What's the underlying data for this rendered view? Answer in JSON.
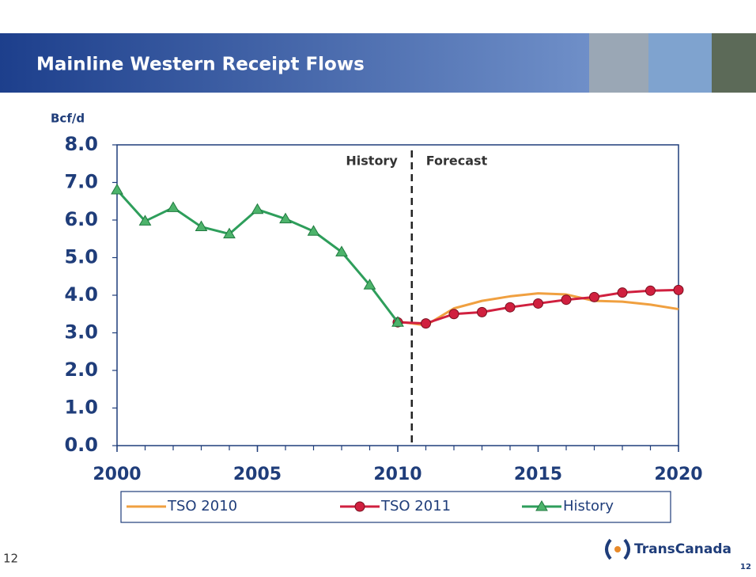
{
  "slide": {
    "title": "Mainline Western Receipt Flows",
    "page_number": "12",
    "logo": "TransCanada",
    "corner_number": "12"
  },
  "chart_data": {
    "type": "line",
    "y_label": "Bcf/d",
    "x": [
      2000,
      2001,
      2002,
      2003,
      2004,
      2005,
      2006,
      2007,
      2008,
      2009,
      2010,
      2011,
      2012,
      2013,
      2014,
      2015,
      2016,
      2017,
      2018,
      2019,
      2020
    ],
    "series": [
      {
        "name": "TSO 2010",
        "color": "#f0a040",
        "marker": "none",
        "values": [
          null,
          null,
          null,
          null,
          null,
          null,
          null,
          null,
          null,
          null,
          3.3,
          3.2,
          3.65,
          3.85,
          3.97,
          4.05,
          4.02,
          3.85,
          3.83,
          3.75,
          3.63
        ]
      },
      {
        "name": "TSO 2011",
        "color": "#d0203f",
        "marker": "circle",
        "values": [
          null,
          null,
          null,
          null,
          null,
          null,
          null,
          null,
          null,
          null,
          3.28,
          3.25,
          3.5,
          3.55,
          3.68,
          3.78,
          3.88,
          3.95,
          4.07,
          4.12,
          4.14
        ]
      },
      {
        "name": "History",
        "color": "#2e9e5b",
        "marker": "triangle",
        "values": [
          6.8,
          5.97,
          6.33,
          5.82,
          5.63,
          6.28,
          6.03,
          5.7,
          5.15,
          4.27,
          3.28,
          null,
          null,
          null,
          null,
          null,
          null,
          null,
          null,
          null,
          null
        ]
      }
    ],
    "xlim": [
      2000,
      2020
    ],
    "xticks": [
      2000,
      2005,
      2010,
      2015,
      2020
    ],
    "ylim": [
      0,
      8
    ],
    "yticks": [
      {
        "value": 0,
        "label": "0.0"
      },
      {
        "value": 1,
        "label": "1.0"
      },
      {
        "value": 2,
        "label": "2.0"
      },
      {
        "value": 3,
        "label": "3.0"
      },
      {
        "value": 4,
        "label": "4.0"
      },
      {
        "value": 5,
        "label": "5.0"
      },
      {
        "value": 6,
        "label": "6.0"
      },
      {
        "value": 7,
        "label": "7.0"
      },
      {
        "value": 8,
        "label": "8.0"
      }
    ],
    "divider_x": 2010.5,
    "annotations": [
      "History",
      "Forecast"
    ]
  }
}
